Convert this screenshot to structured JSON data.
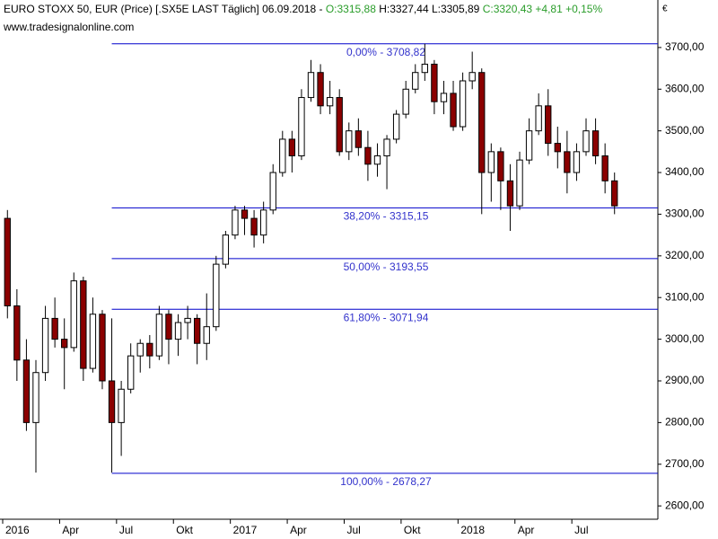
{
  "header": {
    "title": "EURO STOXX 50, EUR (Price) [.SX5E LAST Täglich] 06.09.2018 -",
    "open": "O:3315,88",
    "high_low": "H:3327,44 L:3305,89",
    "close": "C:3320,43 +4,81 +0,15%",
    "source": "www.tradesignalonline.com",
    "currency": "€"
  },
  "chart_data": {
    "type": "candlestick",
    "categories": [
      "2016",
      null,
      null,
      null,
      null,
      null,
      "Apr",
      null,
      null,
      null,
      null,
      null,
      "Jul",
      null,
      null,
      null,
      null,
      null,
      "Okt",
      null,
      null,
      null,
      null,
      null,
      "2017",
      null,
      null,
      null,
      null,
      null,
      "Apr",
      null,
      null,
      null,
      null,
      null,
      "Jul",
      null,
      null,
      null,
      null,
      null,
      "Okt",
      null,
      null,
      null,
      null,
      null,
      "2018",
      null,
      null,
      null,
      null,
      null,
      "Apr",
      null,
      null,
      null,
      null,
      null,
      "Jul",
      null,
      null,
      null,
      null
    ],
    "open": [
      3290,
      3080,
      2950,
      2800,
      2920,
      3050,
      3000,
      2980,
      3140,
      2930,
      3060,
      2900,
      2800,
      2880,
      2960,
      2990,
      2960,
      3060,
      3000,
      3040,
      3050,
      2990,
      3030,
      3180,
      3250,
      3310,
      3290,
      3250,
      3310,
      3400,
      3480,
      3440,
      3580,
      3640,
      3560,
      3580,
      3450,
      3500,
      3460,
      3420,
      3440,
      3480,
      3540,
      3600,
      3640,
      3660,
      3570,
      3590,
      3510,
      3620,
      3640,
      3400,
      3450,
      3380,
      3320,
      3430,
      3500,
      3560,
      3470,
      3450,
      3400,
      3450,
      3500,
      3440,
      3380
    ],
    "high": [
      3310,
      3120,
      3000,
      2950,
      3080,
      3100,
      3050,
      3160,
      3150,
      3100,
      3070,
      3050,
      2900,
      2990,
      3000,
      3010,
      3080,
      3070,
      3060,
      3080,
      3060,
      3110,
      3200,
      3260,
      3320,
      3320,
      3310,
      3330,
      3420,
      3500,
      3500,
      3600,
      3670,
      3660,
      3620,
      3600,
      3520,
      3530,
      3500,
      3470,
      3490,
      3550,
      3620,
      3660,
      3709,
      3670,
      3620,
      3620,
      3640,
      3690,
      3650,
      3470,
      3460,
      3420,
      3450,
      3530,
      3590,
      3600,
      3510,
      3500,
      3470,
      3530,
      3530,
      3470,
      3400
    ],
    "low": [
      3050,
      2900,
      2780,
      2680,
      2900,
      2980,
      2880,
      2970,
      2900,
      2920,
      2880,
      2680,
      2720,
      2870,
      2920,
      2930,
      2950,
      2940,
      2960,
      3000,
      2940,
      2950,
      3020,
      3170,
      3240,
      3250,
      3220,
      3230,
      3300,
      3390,
      3400,
      3430,
      3570,
      3540,
      3540,
      3440,
      3430,
      3440,
      3380,
      3390,
      3360,
      3470,
      3530,
      3590,
      3620,
      3540,
      3540,
      3500,
      3500,
      3600,
      3300,
      3330,
      3310,
      3260,
      3310,
      3420,
      3490,
      3440,
      3410,
      3350,
      3380,
      3440,
      3420,
      3350,
      3300
    ],
    "close": [
      3080,
      2950,
      2800,
      2920,
      3050,
      3000,
      2980,
      3140,
      2930,
      3060,
      2900,
      2800,
      2880,
      2960,
      2990,
      2960,
      3060,
      3000,
      3040,
      3050,
      2990,
      3030,
      3180,
      3250,
      3310,
      3290,
      3250,
      3310,
      3400,
      3480,
      3440,
      3580,
      3640,
      3560,
      3580,
      3450,
      3500,
      3460,
      3420,
      3440,
      3480,
      3540,
      3600,
      3640,
      3660,
      3570,
      3590,
      3510,
      3620,
      3640,
      3400,
      3450,
      3380,
      3320,
      3430,
      3500,
      3560,
      3470,
      3450,
      3400,
      3450,
      3500,
      3440,
      3380,
      3320
    ],
    "up_color": "#ffffff",
    "down_color": "#8b0000",
    "ylim": [
      2568,
      3814
    ],
    "yticks": [
      {
        "value": 2600,
        "label": "2600,00"
      },
      {
        "value": 2700,
        "label": "2700,00"
      },
      {
        "value": 2800,
        "label": "2800,00"
      },
      {
        "value": 2900,
        "label": "2900,00"
      },
      {
        "value": 3000,
        "label": "3000,00"
      },
      {
        "value": 3100,
        "label": "3100,00"
      },
      {
        "value": 3200,
        "label": "3200,00"
      },
      {
        "value": 3300,
        "label": "3300,00"
      },
      {
        "value": 3400,
        "label": "3400,00"
      },
      {
        "value": 3500,
        "label": "3500,00"
      },
      {
        "value": 3600,
        "label": "3600,00"
      },
      {
        "value": 3700,
        "label": "3700,00"
      }
    ],
    "levels": [
      {
        "value": 3708.82,
        "label": "0,00% - 3708,82"
      },
      {
        "value": 3315.15,
        "label": "38,20% - 3315,15"
      },
      {
        "value": 3193.55,
        "label": "50,00% - 3193,55"
      },
      {
        "value": 3071.94,
        "label": "61,80% - 3071,94"
      },
      {
        "value": 2678.27,
        "label": "100,00% - 2678,27"
      }
    ],
    "level_color": "#0000cc"
  }
}
